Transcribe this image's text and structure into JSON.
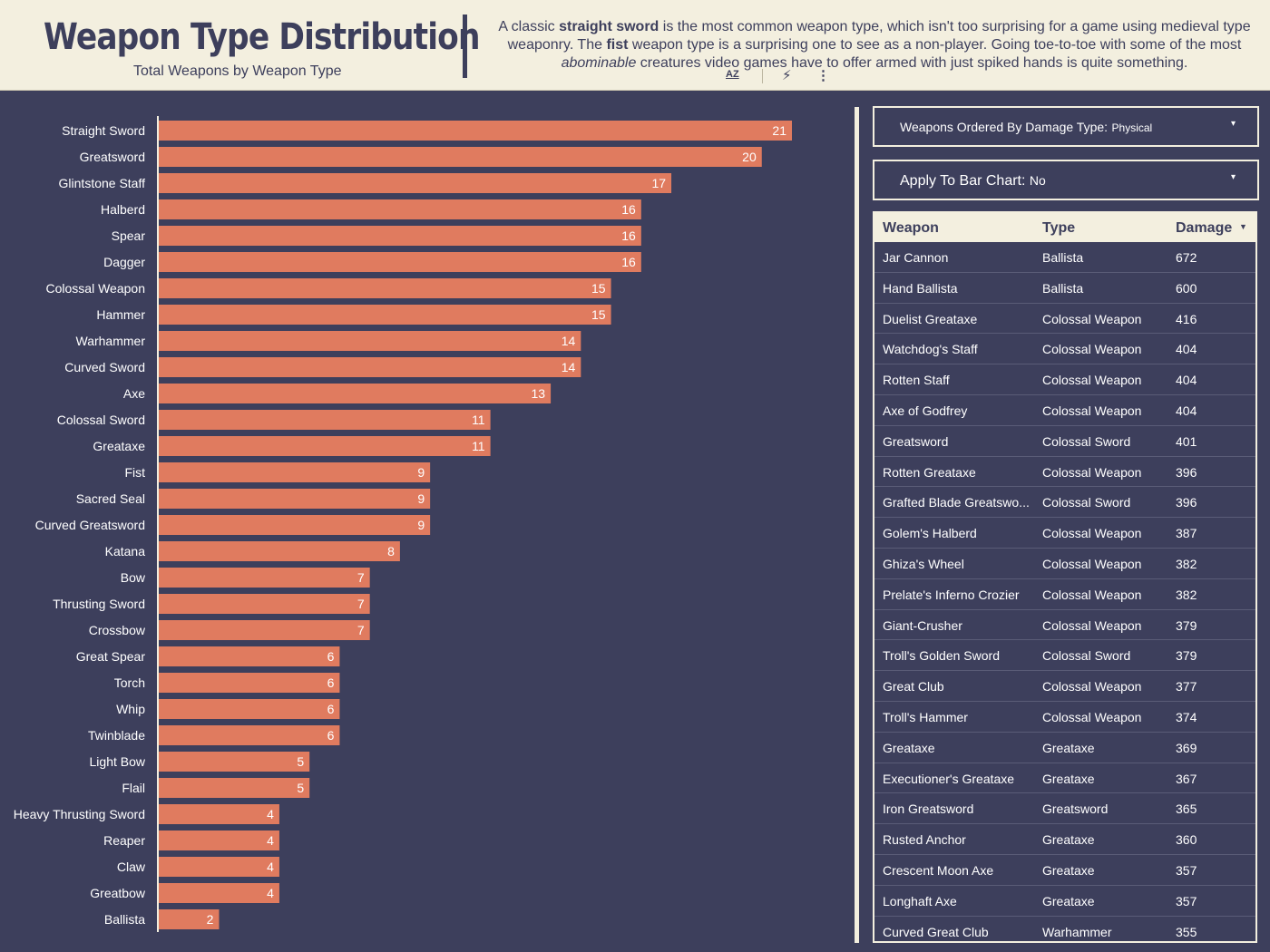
{
  "header": {
    "title": "Weapon Type Distribution",
    "subtitle": "Total Weapons by Weapon Type",
    "desc_1": "A classic ",
    "desc_b1": "straight sword",
    "desc_2": " is the most common weapon type, which isn't too surprising for a game using medieval type weaponry. The ",
    "desc_b2": "fist",
    "desc_3": " weapon type is a surprising one to see as a non-player. Going toe-to-toe with some of the most ",
    "desc_i1": "abominable",
    "desc_4": " creatures video games have to offer armed with just spiked hands is quite something."
  },
  "toolbar": {
    "sort_icon": "sort-az-icon",
    "sort_label": "AZ",
    "bolt_icon": "lightning-icon",
    "more_icon": "more-vertical-icon"
  },
  "colors": {
    "background": "#3d3f5c",
    "header_bg": "#f3efdf",
    "bar": "#e07b5f",
    "text": "#ffffff"
  },
  "filters": {
    "damage_type": {
      "label": "Weapons Ordered By Damage Type:",
      "value": "Physical"
    },
    "apply": {
      "label": "Apply To Bar Chart:",
      "value": "No"
    }
  },
  "table": {
    "columns": [
      "Weapon",
      "Type",
      "Damage"
    ],
    "sort_icon": "sort-desc-icon",
    "rows": [
      [
        "Jar Cannon",
        "Ballista",
        "672"
      ],
      [
        "Hand Ballista",
        "Ballista",
        "600"
      ],
      [
        "Duelist Greataxe",
        "Colossal Weapon",
        "416"
      ],
      [
        "Watchdog's Staff",
        "Colossal Weapon",
        "404"
      ],
      [
        "Rotten Staff",
        "Colossal Weapon",
        "404"
      ],
      [
        "Axe of Godfrey",
        "Colossal Weapon",
        "404"
      ],
      [
        "Greatsword",
        "Colossal Sword",
        "401"
      ],
      [
        "Rotten Greataxe",
        "Colossal Weapon",
        "396"
      ],
      [
        "Grafted Blade Greatswo...",
        "Colossal Sword",
        "396"
      ],
      [
        "Golem's Halberd",
        "Colossal Weapon",
        "387"
      ],
      [
        "Ghiza's Wheel",
        "Colossal Weapon",
        "382"
      ],
      [
        "Prelate's Inferno Crozier",
        "Colossal Weapon",
        "382"
      ],
      [
        "Giant-Crusher",
        "Colossal Weapon",
        "379"
      ],
      [
        "Troll's Golden Sword",
        "Colossal Sword",
        "379"
      ],
      [
        "Great Club",
        "Colossal Weapon",
        "377"
      ],
      [
        "Troll's Hammer",
        "Colossal Weapon",
        "374"
      ],
      [
        "Greataxe",
        "Greataxe",
        "369"
      ],
      [
        "Executioner's Greataxe",
        "Greataxe",
        "367"
      ],
      [
        "Iron Greatsword",
        "Greatsword",
        "365"
      ],
      [
        "Rusted Anchor",
        "Greataxe",
        "360"
      ],
      [
        "Crescent Moon Axe",
        "Greataxe",
        "357"
      ],
      [
        "Longhaft Axe",
        "Greataxe",
        "357"
      ],
      [
        "Curved Great Club",
        "Warhammer",
        "355"
      ]
    ]
  },
  "chart_data": {
    "type": "bar",
    "orientation": "horizontal",
    "title": "Weapon Type Distribution",
    "subtitle": "Total Weapons by Weapon Type",
    "categories": [
      "Straight Sword",
      "Greatsword",
      "Glintstone Staff",
      "Halberd",
      "Spear",
      "Dagger",
      "Colossal Weapon",
      "Hammer",
      "Warhammer",
      "Curved Sword",
      "Axe",
      "Colossal Sword",
      "Greataxe",
      "Fist",
      "Sacred Seal",
      "Curved Greatsword",
      "Katana",
      "Bow",
      "Thrusting Sword",
      "Crossbow",
      "Great Spear",
      "Torch",
      "Whip",
      "Twinblade",
      "Light Bow",
      "Flail",
      "Heavy Thrusting Sword",
      "Reaper",
      "Claw",
      "Greatbow",
      "Ballista"
    ],
    "values": [
      21,
      20,
      17,
      16,
      16,
      16,
      15,
      15,
      14,
      14,
      13,
      11,
      11,
      9,
      9,
      9,
      8,
      7,
      7,
      7,
      6,
      6,
      6,
      6,
      5,
      5,
      4,
      4,
      4,
      4,
      2
    ],
    "xlim": [
      0,
      21
    ],
    "grid": false,
    "data_labels": true
  }
}
